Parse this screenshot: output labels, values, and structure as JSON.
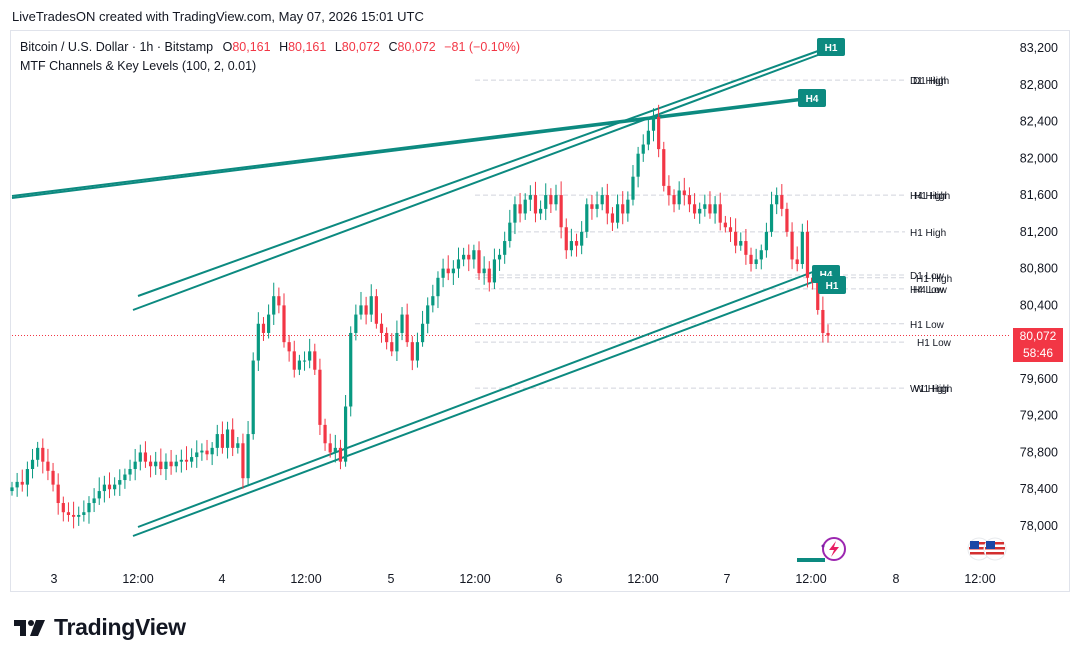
{
  "header": {
    "caption": "LiveTradesON created with TradingView.com, May 07, 2026 15:01 UTC"
  },
  "legend": {
    "symbol": "Bitcoin / U.S. Dollar · 1h · Bitstamp",
    "o_label": "O",
    "o_value": "80,161",
    "h_label": "H",
    "h_value": "80,161",
    "l_label": "L",
    "l_value": "80,072",
    "c_label": "C",
    "c_value": "80,072",
    "change": "−81 (−0.10%)",
    "indicator": "MTF Channels & Key Levels (100, 2, 0.01)"
  },
  "price_tag": {
    "price": "80,072",
    "countdown": "58:46"
  },
  "brand": {
    "name": "TradingView"
  },
  "icons": [
    "tradingview-logo-icon",
    "lightning-icon",
    "us-flag-icon"
  ],
  "colors": {
    "up": "#089981",
    "down": "#f23645",
    "channel": "#0c8a80",
    "level": "#d1d4dc"
  },
  "chart_data": {
    "type": "candlestick",
    "title": "",
    "xlabel": "",
    "ylabel": "",
    "x_ticks": [
      "3",
      "12:00",
      "4",
      "12:00",
      "5",
      "12:00",
      "6",
      "12:00",
      "7",
      "12:00",
      "8",
      "12:00"
    ],
    "y_ticks": [
      "83,200",
      "82,800",
      "82,400",
      "82,000",
      "81,600",
      "81,200",
      "80,800",
      "80,400",
      "80,000",
      "79,600",
      "79,200",
      "78,800",
      "78,400",
      "78,000"
    ],
    "ylim": [
      77600,
      83400
    ],
    "close_series": [
      78420,
      78480,
      78450,
      78620,
      78720,
      78850,
      78700,
      78600,
      78450,
      78250,
      78150,
      78120,
      78100,
      78120,
      78150,
      78250,
      78300,
      78380,
      78450,
      78400,
      78450,
      78500,
      78560,
      78620,
      78700,
      78800,
      78700,
      78650,
      78700,
      78620,
      78700,
      78650,
      78700,
      78720,
      78700,
      78750,
      78800,
      78820,
      78780,
      78850,
      79000,
      78850,
      79050,
      78850,
      78900,
      78520,
      79000,
      79800,
      80200,
      80100,
      80300,
      80500,
      80400,
      80000,
      79900,
      79700,
      79800,
      79800,
      79900,
      79700,
      79100,
      78900,
      78800,
      78850,
      78700,
      79300,
      80100,
      80300,
      80400,
      80300,
      80500,
      80200,
      80100,
      80000,
      79900,
      80100,
      80300,
      80000,
      79800,
      80000,
      80200,
      80400,
      80500,
      80700,
      80800,
      80750,
      80800,
      80900,
      80950,
      80900,
      81000,
      80750,
      80800,
      80650,
      80900,
      80950,
      81100,
      81300,
      81500,
      81400,
      81550,
      81600,
      81400,
      81450,
      81600,
      81500,
      81600,
      81250,
      81000,
      81100,
      81050,
      81200,
      81500,
      81450,
      81500,
      81600,
      81400,
      81300,
      81500,
      81400,
      81550,
      81800,
      82050,
      82150,
      82300,
      82450,
      82100,
      81700,
      81600,
      81500,
      81650,
      81600,
      81500,
      81400,
      81450,
      81500,
      81400,
      81500,
      81300,
      81250,
      81200,
      81050,
      81100,
      80950,
      80850,
      80900,
      81000,
      81200,
      81500,
      81600,
      81450,
      81200,
      80900,
      80850,
      81200,
      80700,
      80650,
      80350,
      80100,
      80072
    ],
    "annotations": [
      "H1",
      "H4",
      "H1",
      "H4",
      "D1 High",
      "H4 High",
      "H1 High",
      "D1 Low",
      "H1 High",
      "H4 Low",
      "H1 Low",
      "H1 Low",
      "W1 High"
    ]
  }
}
